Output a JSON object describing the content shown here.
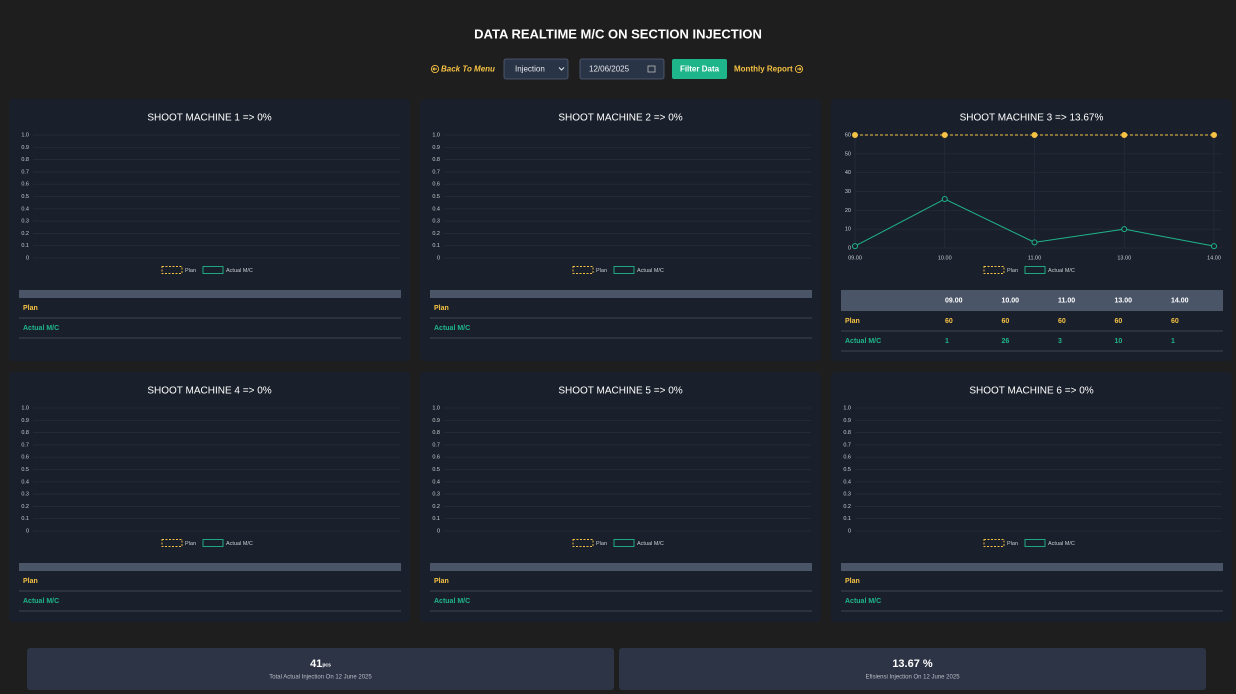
{
  "header": {
    "title": "DATA REALTIME M/C ON SECTION INJECTION"
  },
  "controls": {
    "back": "Back To Menu",
    "section": "Injection",
    "date": "12/06/2025",
    "filter": "Filter Data",
    "monthly": "Monthly Report"
  },
  "chart_data": [
    {
      "type": "line",
      "title": "SHOOT MACHINE 1 => 0%",
      "categories": [],
      "series": [
        {
          "name": "Plan",
          "color": "#f6c244",
          "values": []
        },
        {
          "name": "Actual M/C",
          "color": "#1fb58a",
          "values": []
        }
      ],
      "ylim": [
        0,
        1
      ],
      "yticks": [
        0,
        0.1,
        0.2,
        0.3,
        0.4,
        0.5,
        0.6,
        0.7,
        0.8,
        0.9,
        {
          "value": 1,
          "label": "1.0"
        }
      ],
      "grid": true
    },
    {
      "type": "line",
      "title": "SHOOT MACHINE 2 => 0%",
      "categories": [],
      "series": [
        {
          "name": "Plan",
          "color": "#f6c244",
          "values": []
        },
        {
          "name": "Actual M/C",
          "color": "#1fb58a",
          "values": []
        }
      ],
      "ylim": [
        0,
        1
      ],
      "yticks": [
        0,
        0.1,
        0.2,
        0.3,
        0.4,
        0.5,
        0.6,
        0.7,
        0.8,
        0.9,
        {
          "value": 1,
          "label": "1.0"
        }
      ],
      "grid": true
    },
    {
      "type": "line",
      "title": "SHOOT MACHINE 3 => 13.67%",
      "categories": [
        "09.00",
        "10.00",
        "11.00",
        "13.00",
        "14.00"
      ],
      "series": [
        {
          "name": "Plan",
          "color": "#f6c244",
          "values": [
            60,
            60,
            60,
            60,
            60
          ]
        },
        {
          "name": "Actual M/C",
          "color": "#1fb58a",
          "values": [
            1,
            26,
            3,
            10,
            1
          ]
        }
      ],
      "ylim": [
        0,
        60
      ],
      "yticks": [
        0,
        10,
        20,
        30,
        40,
        50,
        60
      ],
      "grid": true
    },
    {
      "type": "line",
      "title": "SHOOT MACHINE 4 => 0%",
      "categories": [],
      "series": [
        {
          "name": "Plan",
          "color": "#f6c244",
          "values": []
        },
        {
          "name": "Actual M/C",
          "color": "#1fb58a",
          "values": []
        }
      ],
      "ylim": [
        0,
        1
      ],
      "yticks": [
        0,
        0.1,
        0.2,
        0.3,
        0.4,
        0.5,
        0.6,
        0.7,
        0.8,
        0.9,
        {
          "value": 1,
          "label": "1.0"
        }
      ],
      "grid": true
    },
    {
      "type": "line",
      "title": "SHOOT MACHINE 5 => 0%",
      "categories": [],
      "series": [
        {
          "name": "Plan",
          "color": "#f6c244",
          "values": []
        },
        {
          "name": "Actual M/C",
          "color": "#1fb58a",
          "values": []
        }
      ],
      "ylim": [
        0,
        1
      ],
      "yticks": [
        0,
        0.1,
        0.2,
        0.3,
        0.4,
        0.5,
        0.6,
        0.7,
        0.8,
        0.9,
        {
          "value": 1,
          "label": "1.0"
        }
      ],
      "grid": true
    },
    {
      "type": "line",
      "title": "SHOOT MACHINE 6 => 0%",
      "categories": [],
      "series": [
        {
          "name": "Plan",
          "color": "#f6c244",
          "values": []
        },
        {
          "name": "Actual M/C",
          "color": "#1fb58a",
          "values": []
        }
      ],
      "ylim": [
        0,
        1
      ],
      "yticks": [
        0,
        0.1,
        0.2,
        0.3,
        0.4,
        0.5,
        0.6,
        0.7,
        0.8,
        0.9,
        {
          "value": 1,
          "label": "1.0"
        }
      ],
      "grid": true
    }
  ],
  "summary": {
    "total": "41",
    "total_unit": "pcs",
    "total_caption": "Total Actual Injection On 12 June 2025",
    "efficiency": "13.67 %",
    "efficiency_caption": "Efisiensi Injection On 12 June 2025"
  }
}
